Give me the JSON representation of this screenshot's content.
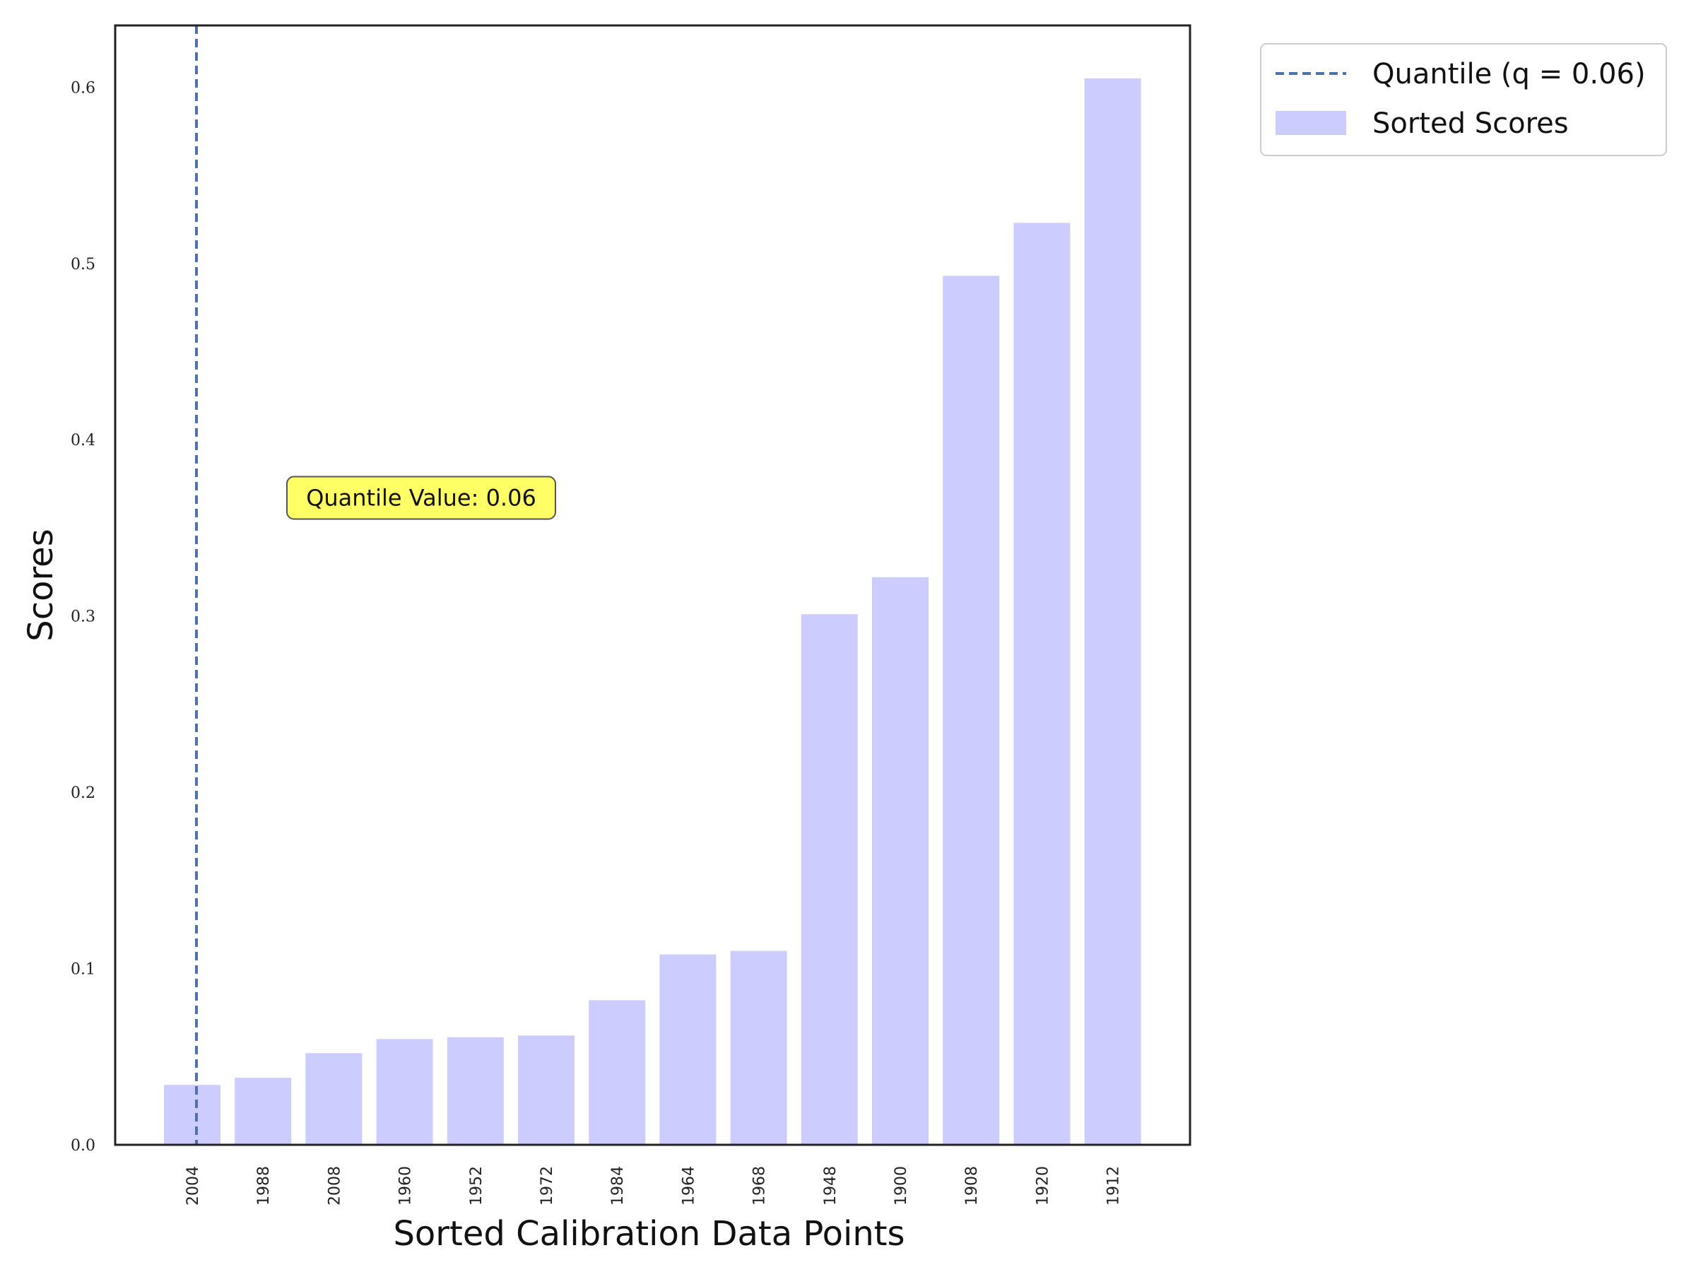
{
  "chart_data": {
    "type": "bar",
    "categories": [
      "2004",
      "1988",
      "2008",
      "1960",
      "1952",
      "1972",
      "1984",
      "1964",
      "1968",
      "1948",
      "1900",
      "1908",
      "1920",
      "1912"
    ],
    "series": [
      {
        "name": "Sorted Scores",
        "values": [
          0.034,
          0.038,
          0.052,
          0.06,
          0.061,
          0.062,
          0.082,
          0.108,
          0.11,
          0.301,
          0.322,
          0.493,
          0.523,
          0.605
        ],
        "color": "#ccccff"
      }
    ],
    "xlabel": "Sorted Calibration Data Points",
    "ylabel": "Scores",
    "ylim": [
      0,
      0.635
    ],
    "yticks": [
      "0.0",
      "0.1",
      "0.2",
      "0.3",
      "0.4",
      "0.5",
      "0.6"
    ],
    "ytick_values": [
      0.0,
      0.1,
      0.2,
      0.3,
      0.4,
      0.5,
      0.6
    ],
    "quantile_line": {
      "category_index": 0,
      "label": "Quantile (q = 0.06)",
      "style": "dashed",
      "color": "#4c72b0"
    },
    "annotation": {
      "text": "Quantile Value: 0.06",
      "background": "#ffff66",
      "y": 0.367
    },
    "legend": {
      "placement": "outside-top-right",
      "entries": [
        "Quantile (q = 0.06)",
        "Sorted Scores"
      ]
    },
    "grid": false
  }
}
